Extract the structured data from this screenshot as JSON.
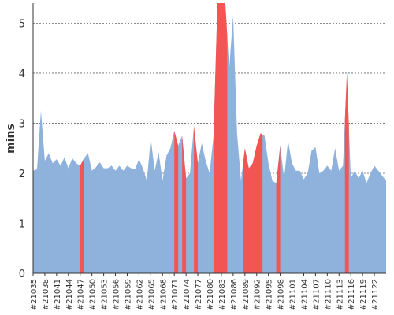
{
  "chart_data": {
    "type": "area",
    "ylabel": "mins",
    "xlabel": "",
    "title": "",
    "ylim": [
      0,
      5.4
    ],
    "y_ticks": [
      0,
      1,
      2,
      3,
      4,
      5
    ],
    "grid": "horizontal-dotted",
    "colors": {
      "normal": "#8eb2dc",
      "highlight": "#f35555"
    },
    "x_start": 21035,
    "x_end": 21124,
    "tick_labels": [
      "#21035",
      "#21038",
      "#21041",
      "#21044",
      "#21047",
      "#21050",
      "#21053",
      "#21056",
      "#21059",
      "#21062",
      "#21065",
      "#21068",
      "#21071",
      "#21074",
      "#21077",
      "#21080",
      "#21083",
      "#21086",
      "#21089",
      "#21092",
      "#21095",
      "#21098",
      "#21101",
      "#21104",
      "#21107",
      "#21110",
      "#21113",
      "#21116",
      "#21119",
      "#21122"
    ],
    "series": [
      {
        "values": [
          [
            21035,
            2.05
          ],
          [
            21036,
            2.08
          ],
          [
            21037,
            3.25
          ],
          [
            21038,
            2.25
          ],
          [
            21039,
            2.4
          ],
          [
            21040,
            2.2
          ],
          [
            21041,
            2.28
          ],
          [
            21042,
            2.15
          ],
          [
            21043,
            2.32
          ],
          [
            21044,
            2.1
          ],
          [
            21045,
            2.3
          ],
          [
            21046,
            2.2
          ],
          [
            21047,
            2.15
          ],
          [
            21048,
            2.3
          ],
          [
            21049,
            2.4
          ],
          [
            21050,
            2.05
          ],
          [
            21051,
            2.12
          ],
          [
            21052,
            2.22
          ],
          [
            21053,
            2.1
          ],
          [
            21054,
            2.1
          ],
          [
            21055,
            2.15
          ],
          [
            21056,
            2.05
          ],
          [
            21057,
            2.15
          ],
          [
            21058,
            2.05
          ],
          [
            21059,
            2.15
          ],
          [
            21060,
            2.1
          ],
          [
            21061,
            2.08
          ],
          [
            21062,
            2.28
          ],
          [
            21063,
            2.1
          ],
          [
            21064,
            1.85
          ],
          [
            21065,
            2.7
          ],
          [
            21066,
            2.05
          ],
          [
            21067,
            2.42
          ],
          [
            21068,
            1.85
          ],
          [
            21069,
            2.35
          ],
          [
            21070,
            2.5
          ],
          [
            21071,
            2.85
          ],
          [
            21072,
            2.55
          ],
          [
            21073,
            2.75
          ],
          [
            21074,
            1.9
          ],
          [
            21075,
            2.0
          ],
          [
            21076,
            2.95
          ],
          [
            21077,
            2.2
          ],
          [
            21078,
            2.6
          ],
          [
            21079,
            2.25
          ],
          [
            21080,
            2.0
          ],
          [
            21081,
            2.75
          ],
          [
            21082,
            5.4
          ],
          [
            21083,
            5.4
          ],
          [
            21084,
            5.4
          ],
          [
            21085,
            4.1
          ],
          [
            21086,
            5.15
          ],
          [
            21087,
            2.8
          ],
          [
            21088,
            1.85
          ],
          [
            21089,
            2.5
          ],
          [
            21090,
            2.1
          ],
          [
            21091,
            2.2
          ],
          [
            21092,
            2.55
          ],
          [
            21093,
            2.8
          ],
          [
            21094,
            2.75
          ],
          [
            21095,
            2.2
          ],
          [
            21096,
            1.85
          ],
          [
            21097,
            1.8
          ],
          [
            21098,
            2.55
          ],
          [
            21099,
            1.9
          ],
          [
            21100,
            2.65
          ],
          [
            21101,
            2.2
          ],
          [
            21102,
            2.05
          ],
          [
            21103,
            2.05
          ],
          [
            21104,
            1.88
          ],
          [
            21105,
            2.0
          ],
          [
            21106,
            2.45
          ],
          [
            21107,
            2.52
          ],
          [
            21108,
            2.0
          ],
          [
            21109,
            2.05
          ],
          [
            21110,
            2.15
          ],
          [
            21111,
            2.05
          ],
          [
            21112,
            2.5
          ],
          [
            21113,
            2.05
          ],
          [
            21114,
            2.15
          ],
          [
            21115,
            4.0
          ],
          [
            21116,
            1.9
          ],
          [
            21117,
            2.05
          ],
          [
            21118,
            1.9
          ],
          [
            21119,
            2.05
          ],
          [
            21120,
            1.8
          ],
          [
            21121,
            2.0
          ],
          [
            21122,
            2.15
          ],
          [
            21123,
            2.05
          ],
          [
            21124,
            1.95
          ],
          [
            21125,
            1.85
          ]
        ]
      }
    ],
    "highlights": [
      {
        "from": 21047,
        "to": 21048
      },
      {
        "from": 21071,
        "to": 21072
      },
      {
        "from": 21073,
        "to": 21074
      },
      {
        "from": 21076,
        "to": 21077
      },
      {
        "from": 21081,
        "to": 21084.5
      },
      {
        "from": 21088.5,
        "to": 21093.5
      },
      {
        "from": 21097,
        "to": 21098
      },
      {
        "from": 21114.5,
        "to": 21115.5
      }
    ]
  }
}
